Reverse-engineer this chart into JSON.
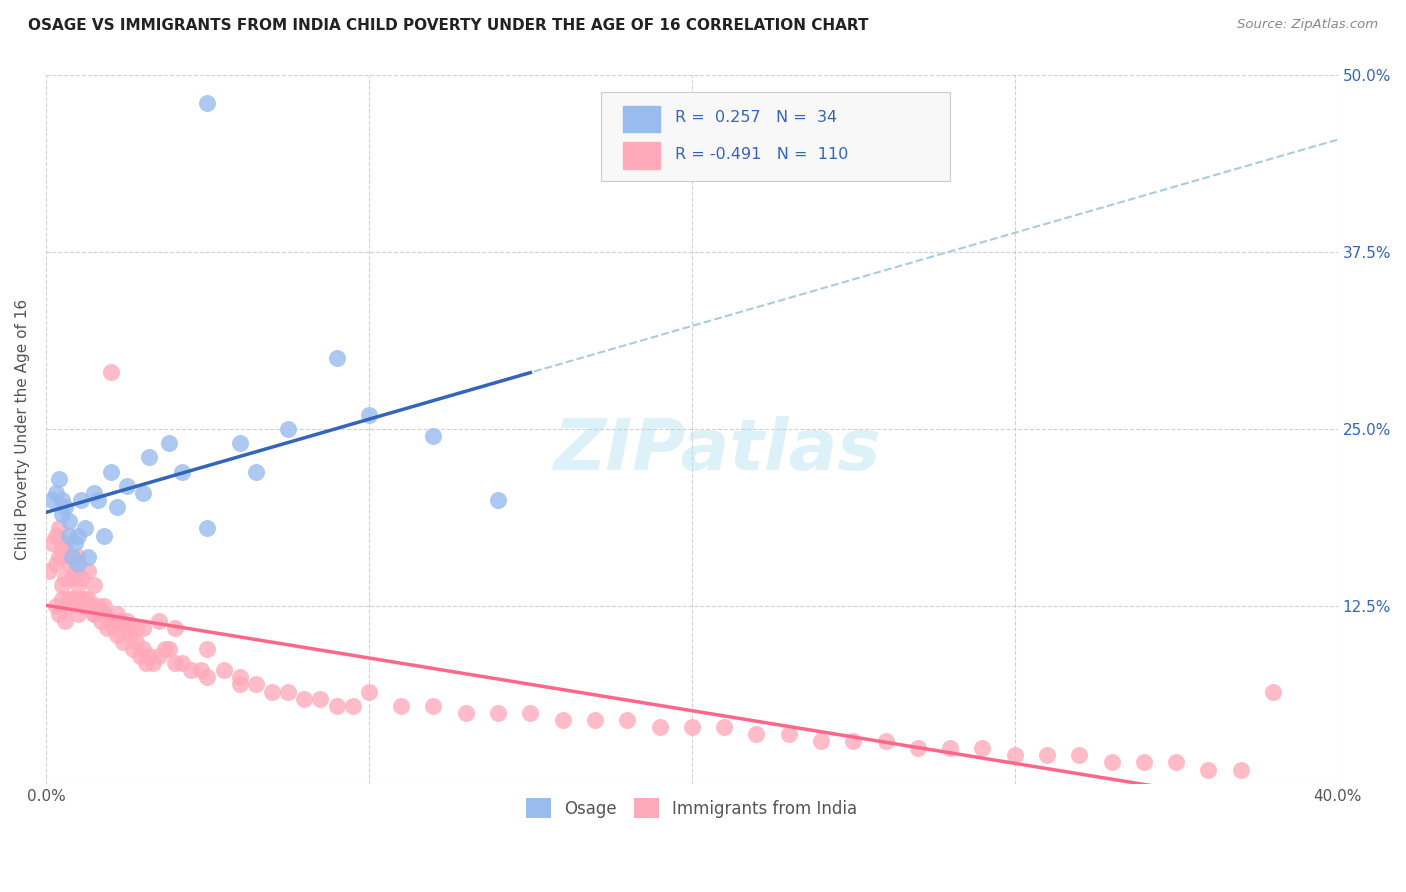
{
  "title": "OSAGE VS IMMIGRANTS FROM INDIA CHILD POVERTY UNDER THE AGE OF 16 CORRELATION CHART",
  "source": "Source: ZipAtlas.com",
  "ylabel": "Child Poverty Under the Age of 16",
  "xlim": [
    0.0,
    0.4
  ],
  "ylim": [
    0.0,
    0.5
  ],
  "xticks": [
    0.0,
    0.1,
    0.2,
    0.3,
    0.4
  ],
  "xticklabels": [
    "0.0%",
    "",
    "",
    "",
    "40.0%"
  ],
  "yticks": [
    0.0,
    0.125,
    0.25,
    0.375,
    0.5
  ],
  "yticklabels_left": [
    "",
    "",
    "",
    "",
    ""
  ],
  "yticklabels_right": [
    "",
    "12.5%",
    "25.0%",
    "37.5%",
    "50.0%"
  ],
  "blue_dot_color": "#99bbee",
  "pink_dot_color": "#ffaabb",
  "blue_line_color": "#3366bb",
  "pink_line_color": "#ff6688",
  "dashed_line_color": "#aaccdd",
  "legend_R1": "0.257",
  "legend_N1": "34",
  "legend_R2": "-0.491",
  "legend_N2": "110",
  "legend_label1": "Osage",
  "legend_label2": "Immigrants from India",
  "watermark": "ZIPatlas",
  "osage_x": [
    0.002,
    0.003,
    0.004,
    0.005,
    0.005,
    0.006,
    0.007,
    0.007,
    0.008,
    0.009,
    0.01,
    0.01,
    0.011,
    0.012,
    0.013,
    0.015,
    0.016,
    0.018,
    0.02,
    0.022,
    0.025,
    0.03,
    0.032,
    0.038,
    0.042,
    0.05,
    0.06,
    0.065,
    0.075,
    0.09,
    0.1,
    0.12,
    0.14,
    0.05
  ],
  "osage_y": [
    0.2,
    0.205,
    0.215,
    0.19,
    0.2,
    0.195,
    0.175,
    0.185,
    0.16,
    0.17,
    0.155,
    0.175,
    0.2,
    0.18,
    0.16,
    0.205,
    0.2,
    0.175,
    0.22,
    0.195,
    0.21,
    0.205,
    0.23,
    0.24,
    0.22,
    0.18,
    0.24,
    0.22,
    0.25,
    0.3,
    0.26,
    0.245,
    0.2,
    0.48
  ],
  "india_x": [
    0.001,
    0.002,
    0.003,
    0.003,
    0.004,
    0.004,
    0.005,
    0.005,
    0.006,
    0.006,
    0.007,
    0.007,
    0.008,
    0.008,
    0.009,
    0.009,
    0.01,
    0.01,
    0.011,
    0.011,
    0.012,
    0.013,
    0.013,
    0.014,
    0.015,
    0.015,
    0.016,
    0.017,
    0.018,
    0.019,
    0.02,
    0.021,
    0.022,
    0.023,
    0.024,
    0.025,
    0.026,
    0.027,
    0.028,
    0.029,
    0.03,
    0.031,
    0.032,
    0.033,
    0.035,
    0.037,
    0.038,
    0.04,
    0.042,
    0.045,
    0.048,
    0.05,
    0.055,
    0.06,
    0.065,
    0.07,
    0.075,
    0.08,
    0.085,
    0.09,
    0.095,
    0.1,
    0.11,
    0.12,
    0.13,
    0.14,
    0.15,
    0.16,
    0.17,
    0.18,
    0.19,
    0.2,
    0.21,
    0.22,
    0.23,
    0.24,
    0.25,
    0.26,
    0.27,
    0.28,
    0.29,
    0.3,
    0.31,
    0.32,
    0.33,
    0.34,
    0.35,
    0.36,
    0.37,
    0.38,
    0.003,
    0.004,
    0.005,
    0.006,
    0.007,
    0.008,
    0.01,
    0.012,
    0.015,
    0.018,
    0.02,
    0.022,
    0.025,
    0.028,
    0.03,
    0.035,
    0.04,
    0.05,
    0.06,
    0.02
  ],
  "india_y": [
    0.15,
    0.17,
    0.155,
    0.175,
    0.16,
    0.18,
    0.14,
    0.165,
    0.145,
    0.17,
    0.13,
    0.155,
    0.145,
    0.16,
    0.13,
    0.15,
    0.14,
    0.16,
    0.13,
    0.145,
    0.125,
    0.13,
    0.15,
    0.125,
    0.12,
    0.14,
    0.125,
    0.115,
    0.12,
    0.11,
    0.115,
    0.11,
    0.105,
    0.115,
    0.1,
    0.11,
    0.105,
    0.095,
    0.1,
    0.09,
    0.095,
    0.085,
    0.09,
    0.085,
    0.09,
    0.095,
    0.095,
    0.085,
    0.085,
    0.08,
    0.08,
    0.075,
    0.08,
    0.07,
    0.07,
    0.065,
    0.065,
    0.06,
    0.06,
    0.055,
    0.055,
    0.065,
    0.055,
    0.055,
    0.05,
    0.05,
    0.05,
    0.045,
    0.045,
    0.045,
    0.04,
    0.04,
    0.04,
    0.035,
    0.035,
    0.03,
    0.03,
    0.03,
    0.025,
    0.025,
    0.025,
    0.02,
    0.02,
    0.02,
    0.015,
    0.015,
    0.015,
    0.01,
    0.01,
    0.065,
    0.125,
    0.12,
    0.13,
    0.115,
    0.125,
    0.13,
    0.12,
    0.13,
    0.12,
    0.125,
    0.115,
    0.12,
    0.115,
    0.11,
    0.11,
    0.115,
    0.11,
    0.095,
    0.075,
    0.29
  ]
}
